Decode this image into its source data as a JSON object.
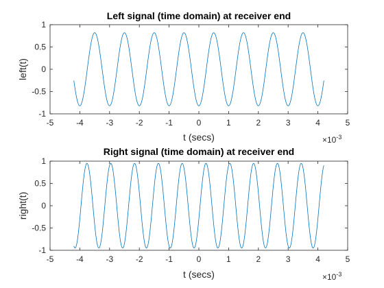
{
  "chart_data": [
    {
      "type": "line",
      "title": "Left signal (time domain) at receiver end",
      "xlabel": "t (secs)",
      "ylabel": "left(t)",
      "x_exponent_label": "×10",
      "x_exponent": "-3",
      "xlim": [
        -0.005,
        0.005
      ],
      "ylim": [
        -1,
        1
      ],
      "xtick_values": [
        -0.005,
        -0.004,
        -0.003,
        -0.002,
        -0.001,
        0,
        0.001,
        0.002,
        0.003,
        0.004,
        0.005
      ],
      "xtick_labels": [
        "-5",
        "-4",
        "-3",
        "-2",
        "-1",
        "0",
        "1",
        "2",
        "3",
        "4",
        "5"
      ],
      "ytick_values": [
        -1,
        -0.5,
        0,
        0.5,
        1
      ],
      "ytick_labels": [
        "-1",
        "-0.5",
        "0",
        "0.5",
        "1"
      ],
      "grid": false,
      "series": [
        {
          "color": "#0072bd",
          "function": "sine",
          "amplitude": 0.82,
          "frequency_hz": 1000,
          "phase_rad": -1.571,
          "x_range": [
            -0.0042,
            0.0042
          ]
        }
      ]
    },
    {
      "type": "line",
      "title": "Right signal (time domain) at receiver end",
      "xlabel": "t (secs)",
      "ylabel": "right(t)",
      "x_exponent_label": "×10",
      "x_exponent": "-3",
      "xlim": [
        -0.005,
        0.005
      ],
      "ylim": [
        -1,
        1
      ],
      "xtick_values": [
        -0.005,
        -0.004,
        -0.003,
        -0.002,
        -0.001,
        0,
        0.001,
        0.002,
        0.003,
        0.004,
        0.005
      ],
      "xtick_labels": [
        "-5",
        "-4",
        "-3",
        "-2",
        "-1",
        "0",
        "1",
        "2",
        "3",
        "4",
        "5"
      ],
      "ytick_values": [
        -1,
        -0.5,
        0,
        0.5,
        1
      ],
      "ytick_labels": [
        "-1",
        "-0.5",
        "0",
        "0.5",
        "1"
      ],
      "grid": false,
      "series": [
        {
          "color": "#0072bd",
          "function": "sine",
          "amplitude": 0.95,
          "frequency_hz": 1250,
          "phase_rad": -0.314,
          "x_range": [
            -0.0042,
            0.0042
          ]
        }
      ]
    }
  ]
}
